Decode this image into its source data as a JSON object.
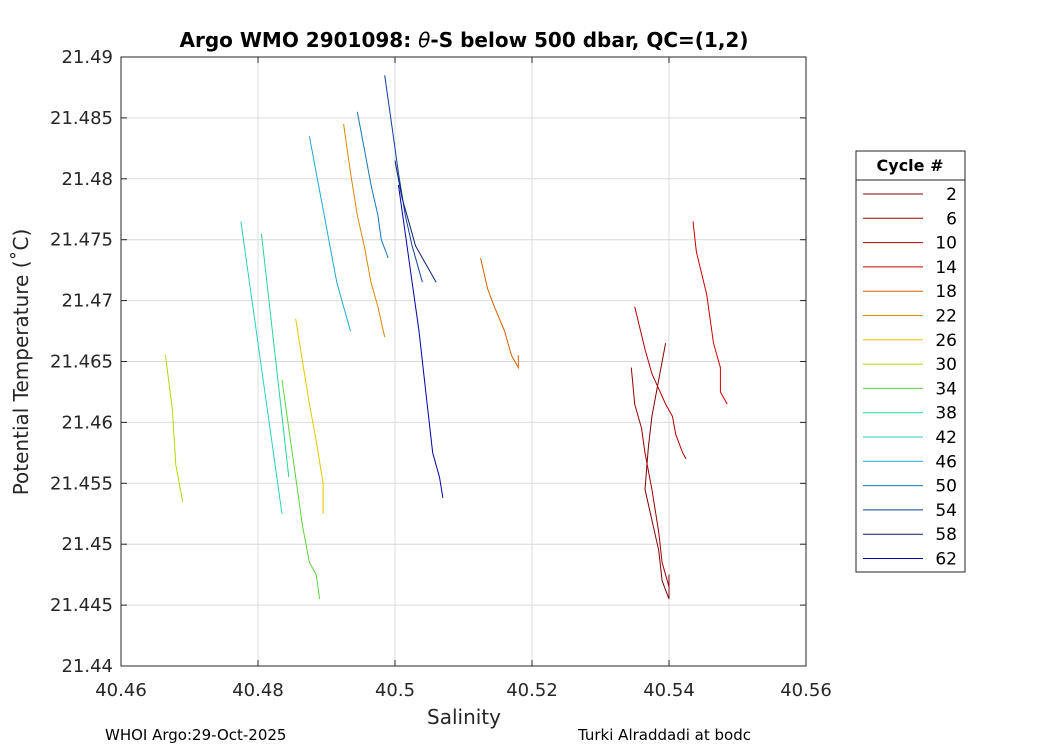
{
  "footer": {
    "left": "WHOI Argo:29-Oct-2025",
    "right": "Turki Alraddadi at bodc"
  },
  "chart_data": {
    "type": "line",
    "title_prefix": "Argo WMO 2901098: ",
    "title_theta": "θ",
    "title_suffix": "-S below 500 dbar,  QC=(1,2)",
    "xlabel": "Salinity",
    "ylabel": "Potential Temperature (˚C)",
    "xlim": [
      40.46,
      40.56
    ],
    "ylim": [
      21.44,
      21.49
    ],
    "xticks": [
      40.46,
      40.48,
      40.5,
      40.52,
      40.54,
      40.56
    ],
    "xtick_labels": [
      "40.46",
      "40.48",
      "40.5",
      "40.52",
      "40.54",
      "40.56"
    ],
    "yticks": [
      21.44,
      21.445,
      21.45,
      21.455,
      21.46,
      21.465,
      21.47,
      21.475,
      21.48,
      21.485,
      21.49
    ],
    "ytick_labels": [
      "21.44",
      "21.445",
      "21.45",
      "21.455",
      "21.46",
      "21.465",
      "21.47",
      "21.475",
      "21.48",
      "21.485",
      "21.49"
    ],
    "grid": true,
    "legend_title": "Cycle #",
    "legend_position": "outside-right",
    "series": [
      {
        "name": "2",
        "color": "#7f0000",
        "x": [
          40.5395,
          40.5385,
          40.5375,
          40.537,
          40.5365,
          40.5385,
          40.539,
          40.54,
          40.54
        ],
        "y": [
          21.4665,
          21.4635,
          21.4605,
          21.458,
          21.4545,
          21.4495,
          21.447,
          21.4455,
          21.4475
        ]
      },
      {
        "name": "6",
        "color": "#990000",
        "x": [
          40.5345,
          40.535,
          40.536,
          40.5365,
          40.5375,
          40.5385,
          40.539,
          40.54
        ],
        "y": [
          21.4645,
          21.4615,
          21.4595,
          21.4575,
          21.4545,
          21.451,
          21.4485,
          21.4465
        ]
      },
      {
        "name": "10",
        "color": "#b30000",
        "x": [
          40.535,
          40.5365,
          40.5375,
          40.5395,
          40.5405,
          40.541,
          40.542,
          40.5425
        ],
        "y": [
          21.4695,
          21.466,
          21.464,
          21.4615,
          21.4605,
          21.459,
          21.4575,
          21.457
        ]
      },
      {
        "name": "14",
        "color": "#cc0000",
        "x": [
          40.5435,
          40.544,
          40.5455,
          40.5465,
          40.5475,
          40.5475,
          40.5485
        ],
        "y": [
          21.4765,
          21.474,
          21.4705,
          21.4665,
          21.4645,
          21.4625,
          21.4615
        ]
      },
      {
        "name": "18",
        "color": "#d95f00",
        "x": [
          40.5125,
          40.5135,
          40.5145,
          40.516,
          40.5165,
          40.517,
          40.518,
          40.518
        ],
        "y": [
          21.4735,
          21.471,
          21.4695,
          21.4675,
          21.4665,
          21.4655,
          21.4645,
          21.4655
        ]
      },
      {
        "name": "22",
        "color": "#dd8800",
        "x": [
          40.4925,
          40.4935,
          40.4945,
          40.4955,
          40.4965,
          40.4975,
          40.4985
        ],
        "y": [
          21.4845,
          21.4805,
          21.477,
          21.4745,
          21.4715,
          21.4695,
          21.467
        ]
      },
      {
        "name": "26",
        "color": "#e6c700",
        "x": [
          40.4855,
          40.4865,
          40.4875,
          40.4885,
          40.4895,
          40.4895
        ],
        "y": [
          21.4685,
          21.465,
          21.4615,
          21.4585,
          21.455,
          21.4525
        ]
      },
      {
        "name": "30",
        "color": "#b5d800",
        "x": [
          40.4665,
          40.4675,
          40.468,
          40.469
        ],
        "y": [
          21.4655,
          21.461,
          21.4565,
          21.4535
        ]
      },
      {
        "name": "34",
        "color": "#5cd43c",
        "x": [
          40.4835,
          40.4845,
          40.4855,
          40.4865,
          40.4875,
          40.4885,
          40.489
        ],
        "y": [
          21.4635,
          21.4595,
          21.4555,
          21.4515,
          21.4485,
          21.4475,
          21.4455
        ]
      },
      {
        "name": "38",
        "color": "#2ad49a",
        "x": [
          40.4805,
          40.4815,
          40.4825,
          40.4835,
          40.4845
        ],
        "y": [
          21.4755,
          21.4705,
          21.4655,
          21.4605,
          21.4555
        ]
      },
      {
        "name": "42",
        "color": "#27d1c4",
        "x": [
          40.4775,
          40.4785,
          40.4795,
          40.4805,
          40.4815,
          40.4825,
          40.4835
        ],
        "y": [
          21.4765,
          21.4725,
          21.4685,
          21.4645,
          21.4605,
          21.4565,
          21.4525
        ]
      },
      {
        "name": "46",
        "color": "#1aaad4",
        "x": [
          40.4875,
          40.4885,
          40.4895,
          40.4905,
          40.4915,
          40.4925,
          40.4935
        ],
        "y": [
          21.4835,
          21.4805,
          21.4775,
          21.4745,
          21.4715,
          21.4695,
          21.4675
        ]
      },
      {
        "name": "50",
        "color": "#1477b8",
        "x": [
          40.4945,
          40.4955,
          40.4965,
          40.4975,
          40.498,
          40.499
        ],
        "y": [
          21.4855,
          21.4825,
          21.4795,
          21.477,
          21.475,
          21.4735
        ]
      },
      {
        "name": "54",
        "color": "#0d3da0",
        "x": [
          40.4985,
          40.4995,
          40.5005,
          40.5015,
          40.5025,
          40.5035,
          40.504
        ],
        "y": [
          21.4885,
          21.4845,
          21.4805,
          21.477,
          21.4745,
          21.4725,
          21.4715
        ]
      },
      {
        "name": "58",
        "color": "#0a1f70",
        "x": [
          40.5,
          40.501,
          40.502,
          40.503,
          40.504,
          40.505,
          40.506
        ],
        "y": [
          21.4815,
          21.4785,
          21.4765,
          21.4745,
          21.4735,
          21.4725,
          21.4715
        ]
      },
      {
        "name": "62",
        "color": "#0000aa",
        "x": [
          40.5005,
          40.5015,
          40.5025,
          40.5035,
          40.5045,
          40.5055,
          40.5065,
          40.507
        ],
        "y": [
          21.4795,
          21.4755,
          21.4715,
          21.4675,
          21.4625,
          21.4575,
          21.4555,
          21.4538
        ]
      }
    ]
  }
}
